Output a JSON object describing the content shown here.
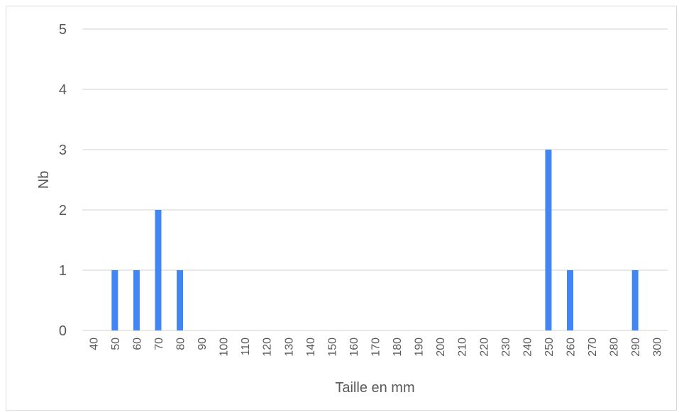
{
  "chart_data": {
    "type": "bar",
    "title": "",
    "xlabel": "Taille en mm",
    "ylabel": "Nb",
    "categories": [
      "40",
      "50",
      "60",
      "70",
      "80",
      "90",
      "100",
      "110",
      "120",
      "130",
      "140",
      "150",
      "160",
      "170",
      "180",
      "190",
      "200",
      "210",
      "220",
      "230",
      "240",
      "250",
      "260",
      "270",
      "280",
      "290",
      "300"
    ],
    "values": [
      0,
      1,
      1,
      2,
      1,
      0,
      0,
      0,
      0,
      0,
      0,
      0,
      0,
      0,
      0,
      0,
      0,
      0,
      0,
      0,
      0,
      3,
      1,
      0,
      0,
      1,
      0
    ],
    "y_ticks": [
      "0",
      "1",
      "2",
      "3",
      "4",
      "5"
    ],
    "ylim": [
      0,
      5
    ],
    "grid": "horizontal",
    "legend": "none",
    "bar_color": "#4285f4",
    "grid_color": "#d9d9d9",
    "text_color": "#595959"
  }
}
